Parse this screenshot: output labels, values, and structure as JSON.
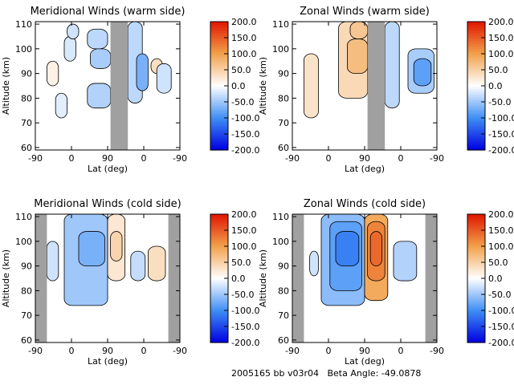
{
  "footer": {
    "dataset": "2005165 bb v03r04",
    "beta_label": "Beta Angle:",
    "beta_value": "-49.0878"
  },
  "colorbar": {
    "ticks": [
      "200.0",
      "150.0",
      "100.0",
      "50.0",
      "0.0",
      "-50.0",
      "-100.0",
      "-150.0",
      "-200.0"
    ],
    "range": [
      -200,
      200
    ],
    "colors": {
      "negative_max": "#0000e0",
      "negative_mid": "#3f8ff5",
      "near_zero": "#ffffff",
      "positive_mid": "#f2a04a",
      "positive_max": "#e01500"
    }
  },
  "chart_data": [
    {
      "type": "heatmap",
      "title": "Meridional Winds (warm side)",
      "xlabel": "Lat (deg)",
      "ylabel": "Altitude (km)",
      "xticks": [
        "-90",
        "0",
        "90",
        "0",
        "-90"
      ],
      "yticks": [
        "60",
        "70",
        "80",
        "90",
        "100",
        "110"
      ],
      "ylim": [
        59,
        111
      ],
      "masked_bands": [
        [
          0.52,
          0.64
        ]
      ],
      "cells": [
        {
          "x": [
            0.08,
            0.16
          ],
          "y": [
            85,
            95
          ],
          "value": 15
        },
        {
          "x": [
            0.2,
            0.28
          ],
          "y": [
            95,
            105
          ],
          "value": -20
        },
        {
          "x": [
            0.36,
            0.5
          ],
          "y": [
            100,
            108
          ],
          "value": -35
        },
        {
          "x": [
            0.38,
            0.52
          ],
          "y": [
            92,
            100
          ],
          "value": -45
        },
        {
          "x": [
            0.36,
            0.52
          ],
          "y": [
            76,
            86
          ],
          "value": -40
        },
        {
          "x": [
            0.64,
            0.74
          ],
          "y": [
            78,
            111
          ],
          "value": -35
        },
        {
          "x": [
            0.7,
            0.78
          ],
          "y": [
            83,
            98
          ],
          "value": -70
        },
        {
          "x": [
            0.8,
            0.88
          ],
          "y": [
            90,
            96
          ],
          "value": 35
        },
        {
          "x": [
            0.84,
            0.94
          ],
          "y": [
            82,
            94
          ],
          "value": -25
        },
        {
          "x": [
            0.14,
            0.22
          ],
          "y": [
            72,
            82
          ],
          "value": -15
        },
        {
          "x": [
            0.22,
            0.3
          ],
          "y": [
            104,
            110
          ],
          "value": -25
        }
      ]
    },
    {
      "type": "heatmap",
      "title": "Zonal Winds (warm side)",
      "xlabel": "Lat (deg)",
      "ylabel": "Altitude (km)",
      "xticks": [
        "-90",
        "0",
        "90",
        "0",
        "-90"
      ],
      "yticks": [
        "60",
        "70",
        "80",
        "90",
        "100",
        "110"
      ],
      "ylim": [
        59,
        111
      ],
      "masked_bands": [
        [
          0.52,
          0.64
        ]
      ],
      "cells": [
        {
          "x": [
            0.08,
            0.18
          ],
          "y": [
            72,
            98
          ],
          "value": 30
        },
        {
          "x": [
            0.32,
            0.52
          ],
          "y": [
            80,
            111
          ],
          "value": 40
        },
        {
          "x": [
            0.38,
            0.52
          ],
          "y": [
            90,
            104
          ],
          "value": 70
        },
        {
          "x": [
            0.4,
            0.52
          ],
          "y": [
            104,
            111
          ],
          "value": 60
        },
        {
          "x": [
            0.64,
            0.74
          ],
          "y": [
            76,
            111
          ],
          "value": -35
        },
        {
          "x": [
            0.8,
            0.98
          ],
          "y": [
            82,
            100
          ],
          "value": -45
        },
        {
          "x": [
            0.84,
            0.96
          ],
          "y": [
            85,
            96
          ],
          "value": -85
        }
      ]
    },
    {
      "type": "heatmap",
      "title": "Meridional Winds (cold side)",
      "xlabel": "Lat (deg)",
      "ylabel": "Altitude (km)",
      "xticks": [
        "-90",
        "0",
        "90",
        "0",
        "-90"
      ],
      "yticks": [
        "60",
        "70",
        "80",
        "90",
        "100",
        "110"
      ],
      "ylim": [
        59,
        111
      ],
      "masked_bands": [
        [
          0.0,
          0.08
        ],
        [
          0.92,
          1.0
        ]
      ],
      "cells": [
        {
          "x": [
            0.08,
            0.16
          ],
          "y": [
            84,
            100
          ],
          "value": -25
        },
        {
          "x": [
            0.2,
            0.5
          ],
          "y": [
            74,
            111
          ],
          "value": -50
        },
        {
          "x": [
            0.3,
            0.48
          ],
          "y": [
            90,
            104
          ],
          "value": -70
        },
        {
          "x": [
            0.5,
            0.62
          ],
          "y": [
            84,
            111
          ],
          "value": 25
        },
        {
          "x": [
            0.52,
            0.6
          ],
          "y": [
            92,
            104
          ],
          "value": 45
        },
        {
          "x": [
            0.66,
            0.76
          ],
          "y": [
            84,
            96
          ],
          "value": -30
        },
        {
          "x": [
            0.78,
            0.9
          ],
          "y": [
            84,
            98
          ],
          "value": 35
        }
      ]
    },
    {
      "type": "heatmap",
      "title": "Zonal Winds (cold side)",
      "xlabel": "Lat (deg)",
      "ylabel": "Altitude (km)",
      "xticks": [
        "-90",
        "0",
        "90",
        "0",
        "-90"
      ],
      "yticks": [
        "60",
        "70",
        "80",
        "90",
        "100",
        "110"
      ],
      "ylim": [
        59,
        111
      ],
      "masked_bands": [
        [
          0.0,
          0.08
        ],
        [
          0.92,
          1.0
        ]
      ],
      "cells": [
        {
          "x": [
            0.2,
            0.5
          ],
          "y": [
            74,
            111
          ],
          "value": -60
        },
        {
          "x": [
            0.26,
            0.48
          ],
          "y": [
            80,
            108
          ],
          "value": -85
        },
        {
          "x": [
            0.3,
            0.46
          ],
          "y": [
            90,
            104
          ],
          "value": -110
        },
        {
          "x": [
            0.5,
            0.66
          ],
          "y": [
            76,
            111
          ],
          "value": 90
        },
        {
          "x": [
            0.52,
            0.64
          ],
          "y": [
            84,
            108
          ],
          "value": 120
        },
        {
          "x": [
            0.54,
            0.62
          ],
          "y": [
            90,
            104
          ],
          "value": 140
        },
        {
          "x": [
            0.7,
            0.86
          ],
          "y": [
            84,
            100
          ],
          "value": -40
        },
        {
          "x": [
            0.12,
            0.18
          ],
          "y": [
            86,
            96
          ],
          "value": -25
        }
      ]
    }
  ]
}
